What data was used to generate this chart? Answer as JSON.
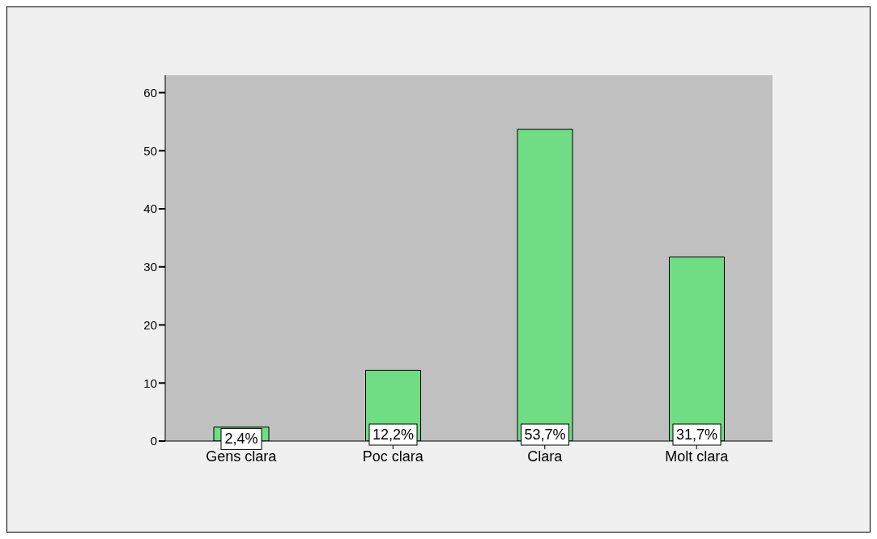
{
  "chart_data": {
    "type": "bar",
    "categories": [
      "Gens clara",
      "Poc clara",
      "Clara",
      "Molt clara"
    ],
    "values": [
      2.4,
      12.2,
      53.7,
      31.7
    ],
    "value_labels": [
      "2,4%",
      "12,2%",
      "53,7%",
      "31,7%"
    ],
    "color": "#70dc84",
    "ylim": [
      0,
      63
    ],
    "yticks": [
      0,
      10,
      20,
      30,
      40,
      50,
      60
    ],
    "grid": false,
    "legend": false
  }
}
